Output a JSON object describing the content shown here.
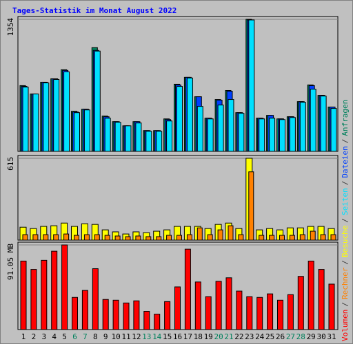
{
  "chart_data": [
    {
      "type": "bar",
      "title": "Tages-Statistik im Monat August 2022",
      "ylim": [
        0,
        1354
      ],
      "yticks": [
        1354
      ],
      "series": [
        {
          "name": "Anfragen",
          "color": "#00805c",
          "values": [
            674,
            588,
            709,
            744,
            837,
            411,
            432,
            1064,
            362,
            305,
            262,
            305,
            213,
            213,
            333,
            688,
            759,
            560,
            340,
            532,
            624,
            397,
            1354,
            340,
            369,
            333,
            355,
            510,
            681,
            574,
            454
          ]
        },
        {
          "name": "Dateien",
          "color": "#0040ff",
          "values": [
            666,
            588,
            709,
            744,
            830,
            404,
            432,
            1035,
            355,
            305,
            262,
            305,
            213,
            213,
            326,
            681,
            759,
            560,
            340,
            525,
            617,
            397,
            1347,
            340,
            369,
            333,
            355,
            510,
            674,
            574,
            454
          ]
        },
        {
          "name": "Seiten",
          "color": "#00e0ff",
          "values": [
            659,
            588,
            702,
            737,
            815,
            397,
            425,
            1028,
            340,
            298,
            262,
            291,
            206,
            206,
            312,
            666,
            752,
            461,
            333,
            475,
            532,
            390,
            1347,
            333,
            340,
            326,
            347,
            503,
            638,
            567,
            440
          ]
        }
      ]
    },
    {
      "type": "bar",
      "ylim": [
        0,
        615
      ],
      "yticks": [
        615
      ],
      "series": [
        {
          "name": "Besuche",
          "color": "#ffff00",
          "values": [
            97,
            87,
            103,
            108,
            128,
            103,
            123,
            118,
            77,
            62,
            46,
            62,
            56,
            67,
            77,
            103,
            103,
            103,
            87,
            118,
            128,
            87,
            615,
            77,
            87,
            77,
            92,
            92,
            103,
            103,
            87
          ]
        },
        {
          "name": "Rechner",
          "color": "#ff8000",
          "values": [
            41,
            41,
            41,
            41,
            46,
            36,
            41,
            41,
            36,
            31,
            26,
            31,
            26,
            26,
            36,
            36,
            41,
            92,
            41,
            77,
            108,
            41,
            513,
            36,
            36,
            36,
            36,
            41,
            67,
            41,
            41
          ]
        }
      ]
    },
    {
      "type": "bar",
      "ylim": [
        0,
        91.05
      ],
      "yticks": [
        {
          "value": 91.05,
          "label": "91.05 MB"
        }
      ],
      "categories": [
        "1",
        "2",
        "3",
        "4",
        "5",
        "6",
        "7",
        "8",
        "9",
        "10",
        "11",
        "12",
        "13",
        "14",
        "15",
        "16",
        "17",
        "18",
        "19",
        "20",
        "21",
        "22",
        "23",
        "24",
        "25",
        "26",
        "27",
        "28",
        "29",
        "30",
        "31"
      ],
      "category_colors": [
        "#000000",
        "#000000",
        "#000000",
        "#000000",
        "#000000",
        "#00805c",
        "#00805c",
        "#000000",
        "#000000",
        "#000000",
        "#000000",
        "#000000",
        "#00805c",
        "#00805c",
        "#000000",
        "#000000",
        "#000000",
        "#000000",
        "#000000",
        "#00805c",
        "#00805c",
        "#000000",
        "#000000",
        "#000000",
        "#000000",
        "#000000",
        "#00805c",
        "#00805c",
        "#000000",
        "#000000",
        "#000000"
      ],
      "series": [
        {
          "name": "Volumen",
          "color": "#ff0000",
          "values": [
            73.7,
            64.7,
            74.5,
            84.3,
            91.05,
            34.6,
            42.1,
            65.5,
            32.4,
            31.6,
            28.6,
            30.9,
            19.6,
            16.6,
            30.1,
            45.9,
            86.5,
            51.2,
            35.4,
            51.9,
            55.7,
            41.4,
            35.4,
            34.6,
            38.4,
            31.6,
            37.6,
            57.2,
            73.7,
            64.7,
            48.9
          ]
        }
      ]
    }
  ],
  "legend_separator": "/"
}
